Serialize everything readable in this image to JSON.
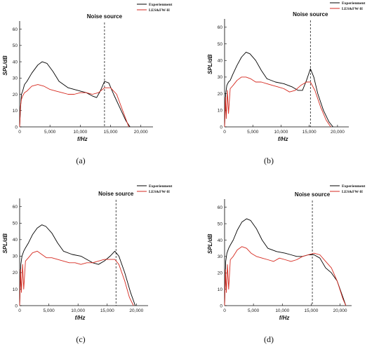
{
  "panels": [
    {
      "caption": "(a)"
    },
    {
      "caption": "(b)"
    },
    {
      "caption": "(c)"
    },
    {
      "caption": "(d)"
    }
  ],
  "chart_data": [
    {
      "type": "line",
      "xlabel": "f/Hz",
      "ylabel": "SPL/dB",
      "xlim": [
        0,
        22000
      ],
      "ylim": [
        0,
        65
      ],
      "xticks": [
        0,
        5000,
        10000,
        15000,
        20000
      ],
      "xtick_labels": [
        "0",
        "5,000",
        "10,000",
        "15,000",
        "20,000"
      ],
      "yticks": [
        0,
        10,
        20,
        30,
        40,
        50,
        60
      ],
      "legend_position": "top-right",
      "annotation": {
        "text": "Noise source",
        "x": 14000
      },
      "series": [
        {
          "name": "Experienment",
          "color": "#000000",
          "x": [
            0,
            150,
            300,
            500,
            800,
            1200,
            2000,
            3000,
            3700,
            4500,
            5500,
            6500,
            8000,
            10000,
            11000,
            12000,
            12700,
            13300,
            14000,
            14700,
            15500,
            16500,
            17500,
            18200
          ],
          "y": [
            0,
            12,
            20,
            22,
            26,
            28,
            33,
            38,
            40,
            39,
            34,
            28,
            24,
            22,
            21,
            19,
            18,
            22,
            28,
            27,
            20,
            12,
            4,
            0
          ]
        },
        {
          "name": "LES&FW-H",
          "color": "#d62a20",
          "x": [
            0,
            150,
            300,
            500,
            800,
            1200,
            2000,
            3000,
            4000,
            5000,
            6000,
            7000,
            8000,
            9000,
            10000,
            11000,
            12000,
            13000,
            14000,
            15000,
            16000,
            17000,
            18000
          ],
          "y": [
            0,
            13,
            17,
            19,
            21,
            22,
            25,
            26,
            25,
            23,
            22,
            21,
            20,
            20,
            21,
            21,
            20,
            21,
            24,
            24,
            20,
            10,
            0
          ]
        }
      ]
    },
    {
      "type": "line",
      "xlabel": "f/Hz",
      "ylabel": "SPL/dB",
      "xlim": [
        0,
        22000
      ],
      "ylim": [
        0,
        65
      ],
      "xticks": [
        0,
        5000,
        10000,
        15000,
        20000
      ],
      "xtick_labels": [
        "0",
        "5,000",
        "10,000",
        "15,000",
        "20,000"
      ],
      "yticks": [
        0,
        10,
        20,
        30,
        40,
        50,
        60
      ],
      "legend_position": "top-right",
      "annotation": {
        "text": "Noise source",
        "x": 15200
      },
      "series": [
        {
          "name": "Experienment",
          "color": "#000000",
          "x": [
            0,
            200,
            400,
            700,
            1000,
            1500,
            2200,
            3000,
            3800,
            4500,
            5500,
            6500,
            7500,
            9000,
            10500,
            12000,
            13000,
            13800,
            14500,
            15200,
            15800,
            16500,
            17500,
            18500,
            19200
          ],
          "y": [
            0,
            20,
            25,
            27,
            28,
            32,
            37,
            42,
            45,
            44,
            40,
            34,
            29,
            27,
            26,
            24,
            22,
            22,
            28,
            35,
            30,
            20,
            10,
            3,
            0
          ]
        },
        {
          "name": "LES&FW-H",
          "color": "#d62a20",
          "x": [
            0,
            150,
            300,
            500,
            700,
            1000,
            1500,
            2200,
            3000,
            3800,
            4600,
            5500,
            6500,
            7500,
            8500,
            9500,
            10500,
            11500,
            12500,
            13500,
            14500,
            15200,
            16000,
            17000,
            18000,
            18800
          ],
          "y": [
            0,
            18,
            5,
            22,
            8,
            23,
            25,
            28,
            30,
            30,
            29,
            27,
            27,
            26,
            25,
            24,
            23,
            21,
            22,
            25,
            27,
            27,
            22,
            12,
            4,
            0
          ]
        }
      ]
    },
    {
      "type": "line",
      "xlabel": "f/Hz",
      "ylabel": "SPL/dB",
      "xlim": [
        0,
        22000
      ],
      "ylim": [
        0,
        65
      ],
      "xticks": [
        0,
        5000,
        10000,
        15000,
        20000
      ],
      "xtick_labels": [
        "0",
        "5,000",
        "10,000",
        "15,000",
        "20,000"
      ],
      "yticks": [
        0,
        10,
        20,
        30,
        40,
        50,
        60
      ],
      "legend_position": "top-right",
      "annotation": {
        "text": "Noise source",
        "x": 16500
      },
      "series": [
        {
          "name": "Experienment",
          "color": "#000000",
          "x": [
            0,
            200,
            400,
            700,
            1000,
            1500,
            2200,
            3000,
            3800,
            4500,
            5500,
            6500,
            7500,
            9000,
            10500,
            11500,
            12500,
            13500,
            14500,
            15500,
            16300,
            17000,
            18000,
            19000,
            19800
          ],
          "y": [
            0,
            25,
            30,
            33,
            35,
            38,
            43,
            47,
            49,
            48,
            44,
            38,
            33,
            31,
            30,
            28,
            26,
            25,
            27,
            30,
            33,
            30,
            20,
            8,
            0
          ]
        },
        {
          "name": "LES&FW-H",
          "color": "#d62a20",
          "x": [
            0,
            150,
            300,
            500,
            700,
            1000,
            1500,
            2200,
            3000,
            3800,
            4600,
            5500,
            6500,
            7500,
            8500,
            9500,
            10500,
            11500,
            12500,
            13500,
            14500,
            15500,
            16300,
            17000,
            18000,
            18800,
            19500
          ],
          "y": [
            0,
            22,
            8,
            25,
            10,
            27,
            29,
            32,
            33,
            31,
            29,
            29,
            28,
            27,
            26,
            26,
            25,
            26,
            26,
            27,
            28,
            28,
            28,
            25,
            15,
            5,
            0
          ]
        }
      ]
    },
    {
      "type": "line",
      "xlabel": "f/Hz",
      "ylabel": "SPL/dB",
      "xlim": [
        0,
        22000
      ],
      "ylim": [
        0,
        65
      ],
      "xticks": [
        0,
        5000,
        10000,
        15000,
        20000
      ],
      "xtick_labels": [
        "0",
        "5,000",
        "10,000",
        "15,000",
        "20,000"
      ],
      "yticks": [
        0,
        10,
        20,
        30,
        40,
        50,
        60
      ],
      "legend_position": "top-right",
      "annotation": {
        "text": "Noise source",
        "x": 15200
      },
      "series": [
        {
          "name": "Experienment",
          "color": "#000000",
          "x": [
            0,
            200,
            400,
            700,
            1000,
            1500,
            2200,
            3000,
            3800,
            4500,
            5500,
            6500,
            7500,
            9000,
            10500,
            11500,
            12500,
            13500,
            14500,
            15500,
            16500,
            17500,
            18500,
            19500,
            20500,
            21000
          ],
          "y": [
            0,
            27,
            32,
            35,
            37,
            40,
            46,
            51,
            53,
            52,
            47,
            40,
            35,
            33,
            32,
            31,
            30,
            30,
            31,
            31,
            29,
            23,
            20,
            15,
            5,
            0
          ]
        },
        {
          "name": "LES&FW-H",
          "color": "#d62a20",
          "x": [
            0,
            150,
            300,
            500,
            700,
            1000,
            1500,
            2200,
            3000,
            3800,
            4600,
            5500,
            6500,
            7500,
            8500,
            9500,
            10500,
            11500,
            12500,
            13500,
            14500,
            15500,
            16500,
            17500,
            18500,
            19500,
            20500,
            21000
          ],
          "y": [
            0,
            22,
            8,
            25,
            10,
            28,
            30,
            34,
            36,
            35,
            32,
            30,
            29,
            28,
            27,
            29,
            28,
            27,
            28,
            30,
            31,
            32,
            31,
            27,
            23,
            15,
            4,
            0
          ]
        }
      ]
    }
  ]
}
